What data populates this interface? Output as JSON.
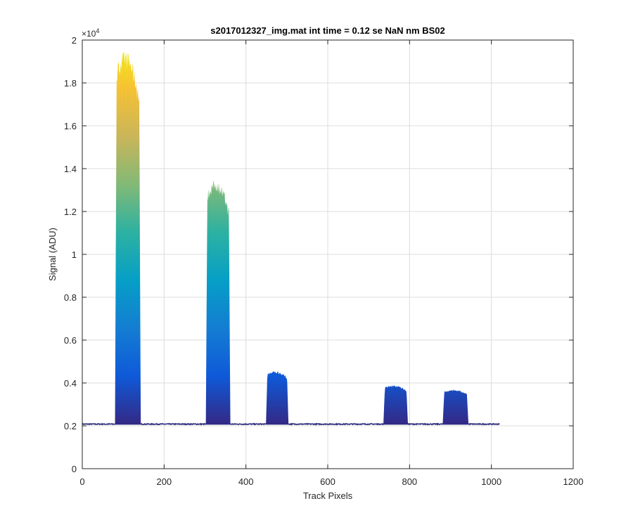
{
  "chart_data": {
    "type": "area",
    "title": "s2017012327_img.mat int time = 0.12 se  NaN nm BS02",
    "xlabel": "Track Pixels",
    "ylabel": "Signal (ADU)",
    "xlim": [
      0,
      1200
    ],
    "ylim": [
      0,
      20000
    ],
    "x_ticks": [
      0,
      200,
      400,
      600,
      800,
      1000,
      1200
    ],
    "x_tick_labels": [
      "0",
      "200",
      "400",
      "600",
      "800",
      "1000",
      "1200"
    ],
    "y_ticks": [
      0,
      2000,
      4000,
      6000,
      8000,
      10000,
      12000,
      14000,
      16000,
      18000,
      20000
    ],
    "y_tick_labels": [
      "0",
      "0.2",
      "0.4",
      "0.6",
      "0.8",
      "1",
      "1.2",
      "1.4",
      "1.6",
      "1.8",
      "2"
    ],
    "y_multiplier_label": "×10",
    "y_multiplier_exponent": "4",
    "grid": true,
    "baseline": 2080,
    "x_range": [
      0,
      1020
    ],
    "colormap": [
      "#352a87",
      "#0f5cdd",
      "#1481d6",
      "#06a4ca",
      "#2eb7a4",
      "#87bf77",
      "#d1bb59",
      "#fec832",
      "#f9fb0e"
    ],
    "peaks": [
      {
        "x_start": 80,
        "x_end": 143,
        "peak": 19100
      },
      {
        "x_start": 302,
        "x_end": 362,
        "peak": 13200
      },
      {
        "x_start": 449,
        "x_end": 504,
        "peak": 4500
      },
      {
        "x_start": 736,
        "x_end": 796,
        "peak": 3850
      },
      {
        "x_start": 881,
        "x_end": 944,
        "peak": 3650
      }
    ]
  }
}
